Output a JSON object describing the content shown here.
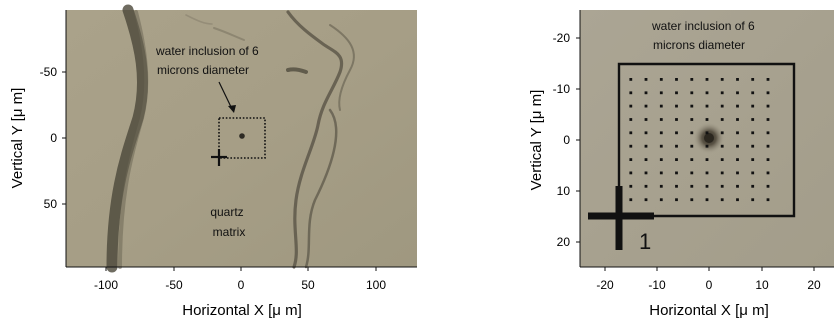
{
  "panels": [
    {
      "id": "left",
      "axes": {
        "x": {
          "label": "Horizontal X  [μ m]",
          "min": -130,
          "max": 130,
          "ticks": [
            -100,
            -50,
            0,
            50,
            100
          ]
        },
        "y": {
          "label": "Vertical Y  [μ m]",
          "min": -97,
          "max": 97,
          "inverted": true,
          "ticks": [
            -50,
            0,
            50
          ]
        }
      },
      "annotations": {
        "inclusion_line1": "water inclusion of 6",
        "inclusion_line2": "microns diameter",
        "matrix_line1": "quartz",
        "matrix_line2": "matrix"
      },
      "dotted_box_um": {
        "x": [
          -17,
          17
        ],
        "y": [
          -17,
          17
        ]
      },
      "cross_um": {
        "x": -17,
        "y": 15
      },
      "inclusion_um": {
        "x": 0,
        "y": 0
      }
    },
    {
      "id": "right",
      "axes": {
        "x": {
          "label": "Horizontal X  [μ m]",
          "min": -25,
          "max": 25,
          "ticks": [
            -20,
            -10,
            0,
            10,
            20
          ]
        },
        "y": {
          "label": "Vertical Y  [μ m]",
          "min": -25,
          "max": 25,
          "inverted": true,
          "ticks": [
            -20,
            -10,
            0,
            10,
            20
          ]
        }
      },
      "annotations": {
        "inclusion_line1": "water inclusion of 6",
        "inclusion_line2": "microns diameter",
        "start_label": "1"
      },
      "scan_box_um": {
        "x": [
          -17,
          15
        ],
        "y": [
          -15,
          15
        ]
      },
      "cross_um": {
        "x": -17,
        "y": 15
      },
      "inclusion_um": {
        "x": 0,
        "y": 0
      },
      "grid": {
        "x_from": -15,
        "x_step": 3,
        "x_count": 10,
        "y_from": -11.5,
        "y_step": 2.6,
        "y_count": 10
      }
    }
  ],
  "colors": {
    "left_background": "#a79f86",
    "right_background": "#a8a290",
    "ink": "#111111"
  }
}
